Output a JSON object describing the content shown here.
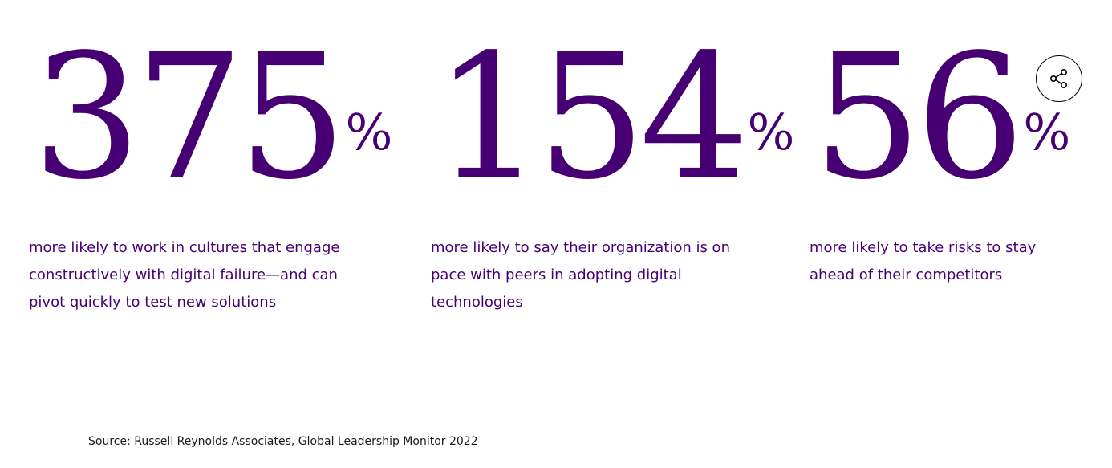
{
  "stats": [
    {
      "number": "375",
      "unit": "%",
      "description": "more likely to work in cultures that engage constructively with digital failure—and can pivot quickly to test new solutions"
    },
    {
      "number": "154",
      "unit": "%",
      "description": "more likely to say their organization is on pace with peers in adopting digital technologies"
    },
    {
      "number": "56",
      "unit": "%",
      "description": "more likely to take risks to stay ahead of their competitors"
    }
  ],
  "share": {
    "icon": "share-icon"
  },
  "source": "Source: Russell Reynolds Associates, Global Leadership Monitor 2022",
  "colors": {
    "accent": "#460073",
    "text": "#1a1a1a",
    "background": "#ffffff"
  }
}
